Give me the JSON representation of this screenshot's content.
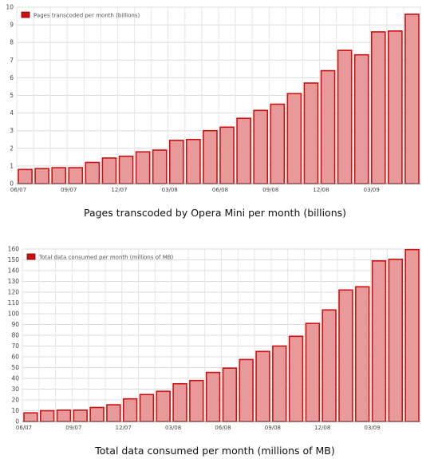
{
  "chart_data": [
    {
      "type": "bar",
      "legend": "Pages transcoded per month (billions)",
      "caption": "Pages transcoded by Opera Mini per month (billions)",
      "values": [
        0.8,
        0.85,
        0.9,
        0.9,
        1.2,
        1.45,
        1.55,
        1.8,
        1.9,
        2.45,
        2.5,
        3.0,
        3.2,
        3.7,
        4.15,
        4.5,
        5.1,
        5.7,
        6.4,
        7.55,
        7.3,
        8.6,
        8.65,
        9.6
      ],
      "ylim": [
        0,
        10
      ],
      "yticks": [
        "0",
        "1",
        "2",
        "3",
        "4",
        "5",
        "6",
        "7",
        "8",
        "9",
        "10"
      ],
      "xticks": [
        {
          "index": 0,
          "label": "06/07"
        },
        {
          "index": 3,
          "label": "09/07"
        },
        {
          "index": 6,
          "label": "12/07"
        },
        {
          "index": 9,
          "label": "03/08"
        },
        {
          "index": 12,
          "label": "06/08"
        },
        {
          "index": 15,
          "label": "09/08"
        },
        {
          "index": 18,
          "label": "12/08"
        },
        {
          "index": 21,
          "label": "03/09"
        }
      ],
      "grid": true,
      "legend_position": "top-left",
      "bar_color": "#e89a9a",
      "edge_color": "#cc1111"
    },
    {
      "type": "bar",
      "legend": "Total data consumed per month (millions of MB)",
      "caption": "Total data consumed per month (millions of MB)",
      "values": [
        8,
        10,
        10.5,
        10.5,
        13,
        15.5,
        21,
        25,
        28,
        35,
        38,
        45.5,
        49.5,
        57.5,
        65,
        70,
        79,
        91,
        103.5,
        122,
        125,
        149,
        150.5,
        159.5
      ],
      "ylim": [
        0,
        160
      ],
      "yticks": [
        "0",
        "10",
        "20",
        "30",
        "40",
        "50",
        "60",
        "70",
        "80",
        "90",
        "100",
        "110",
        "120",
        "130",
        "140",
        "150",
        "160"
      ],
      "xticks": [
        {
          "index": 0,
          "label": "06/07"
        },
        {
          "index": 3,
          "label": "09/07"
        },
        {
          "index": 6,
          "label": "12/07"
        },
        {
          "index": 9,
          "label": "03/08"
        },
        {
          "index": 12,
          "label": "06/08"
        },
        {
          "index": 15,
          "label": "09/08"
        },
        {
          "index": 18,
          "label": "12/08"
        },
        {
          "index": 21,
          "label": "03/09"
        }
      ],
      "grid": true,
      "legend_position": "top-left",
      "bar_color": "#e89a9a",
      "edge_color": "#cc1111"
    }
  ]
}
